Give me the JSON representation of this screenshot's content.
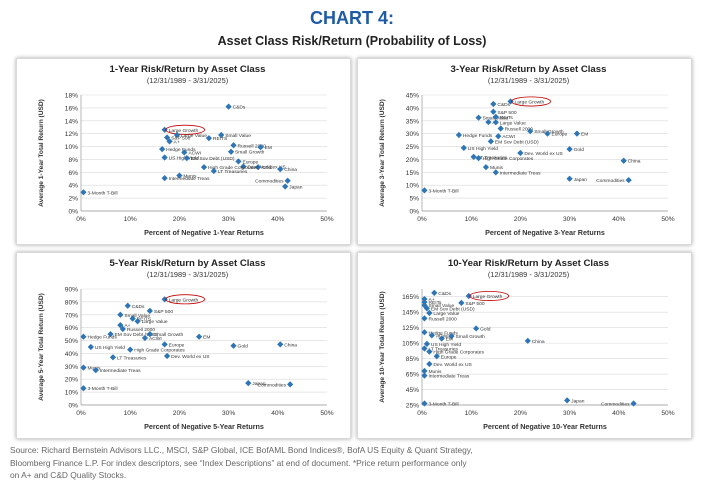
{
  "header": {
    "title": "CHART 4:",
    "subtitle": "Asset Class Risk/Return (Probability of Loss)"
  },
  "colors": {
    "title": "#1f5aa6",
    "marker": "#2e75b6",
    "highlight": "#c00000",
    "grid": "#d9d9d9"
  },
  "source_lines": [
    "Source: Richard Bernstein Advisors LLC., MSCI, S&P Global, ICE BofAML Bond Indices®, BofA US Equity & Quant Strategy,",
    "Bloomberg Finance L.P. For index descriptors, see “Index Descriptions” at end of document. *Price return performance only",
    "on A+ and C&D Quality Stocks."
  ],
  "chart_data": [
    {
      "type": "scatter",
      "title": "1-Year Risk/Return by Asset Class",
      "subtitle": "(12/31/1989 - 3/31/2025)",
      "xlabel": "Percent of Negative 1-Year Returns",
      "ylabel": "Average 1-Year Total Return (USD)",
      "xlim": [
        0,
        50
      ],
      "ylim": [
        0,
        18
      ],
      "xticks": [
        "0%",
        "10%",
        "20%",
        "30%",
        "40%",
        "50%"
      ],
      "xtick_values": [
        0,
        10,
        20,
        30,
        40,
        50
      ],
      "yticks": [
        "0%",
        "2%",
        "4%",
        "6%",
        "8%",
        "10%",
        "12%",
        "14%",
        "16%",
        "18%"
      ],
      "ytick_values": [
        0,
        2,
        4,
        6,
        8,
        10,
        12,
        14,
        16,
        18
      ],
      "highlight": "Large Growth",
      "points": [
        {
          "label": "C&Ds",
          "x": 30,
          "y": 16.2
        },
        {
          "label": "Large Growth",
          "x": 17,
          "y": 12.6
        },
        {
          "label": "Large Value",
          "x": 19.5,
          "y": 11.8
        },
        {
          "label": "Small Value",
          "x": 28.5,
          "y": 11.8
        },
        {
          "label": "S&P 500",
          "x": 17.5,
          "y": 11.4
        },
        {
          "label": "REITS",
          "x": 26,
          "y": 11.3
        },
        {
          "label": "A+",
          "x": 18,
          "y": 10.8
        },
        {
          "label": "Russell 2000",
          "x": 31,
          "y": 10.2
        },
        {
          "label": "EM",
          "x": 36.5,
          "y": 9.9
        },
        {
          "label": "Hedge Funds",
          "x": 16.5,
          "y": 9.6
        },
        {
          "label": "ACWI",
          "x": 21,
          "y": 9.1
        },
        {
          "label": "Small Growth",
          "x": 30.5,
          "y": 9.2
        },
        {
          "label": "US High Yield",
          "x": 17,
          "y": 8.3
        },
        {
          "label": "EM Sov Debt (USD)",
          "x": 21.5,
          "y": 8.2
        },
        {
          "label": "Europe",
          "x": 32,
          "y": 7.7
        },
        {
          "label": "Dev. World ex US",
          "x": 33,
          "y": 6.9
        },
        {
          "label": "Gold",
          "x": 36,
          "y": 6.8
        },
        {
          "label": "High Grade Corporates",
          "x": 25,
          "y": 6.8
        },
        {
          "label": "China",
          "x": 40.5,
          "y": 6.5
        },
        {
          "label": "LT Treasuries",
          "x": 27,
          "y": 6.2
        },
        {
          "label": "Munis",
          "x": 20,
          "y": 5.5
        },
        {
          "label": "Intermediate Treas",
          "x": 17,
          "y": 5.1
        },
        {
          "label": "Commodities",
          "x": 42,
          "y": 4.7
        },
        {
          "label": "Japan",
          "x": 41.5,
          "y": 3.8
        },
        {
          "label": "3-Month T-Bill",
          "x": 0.5,
          "y": 2.9
        }
      ]
    },
    {
      "type": "scatter",
      "title": "3-Year Risk/Return by Asset Class",
      "subtitle": "(12/31/1989 - 3/31/2025)",
      "xlabel": "Percent of Negative 3-Year Returns",
      "ylabel": "Average 3-Year Total Return (USD)",
      "xlim": [
        0,
        50
      ],
      "ylim": [
        0,
        45
      ],
      "xticks": [
        "0%",
        "10%",
        "20%",
        "30%",
        "40%",
        "50%"
      ],
      "xtick_values": [
        0,
        10,
        20,
        30,
        40,
        50
      ],
      "yticks": [
        "0%",
        "5%",
        "10%",
        "15%",
        "20%",
        "25%",
        "30%",
        "35%",
        "40%",
        "45%"
      ],
      "ytick_values": [
        0,
        5,
        10,
        15,
        20,
        25,
        30,
        35,
        40,
        45
      ],
      "highlight": "Large Growth",
      "points": [
        {
          "label": "C&Ds",
          "x": 14.5,
          "y": 41.5
        },
        {
          "label": "Large Growth",
          "x": 18,
          "y": 42.5
        },
        {
          "label": "S&P 500",
          "x": 14.5,
          "y": 38.5
        },
        {
          "label": "Small Value",
          "x": 11.5,
          "y": 36.2
        },
        {
          "label": "REITs",
          "x": 15,
          "y": 36.5
        },
        {
          "label": "A+",
          "x": 13.5,
          "y": 34.5
        },
        {
          "label": "Large Value",
          "x": 15,
          "y": 34.4
        },
        {
          "label": "Russell 2000",
          "x": 16,
          "y": 32
        },
        {
          "label": "Small Growth",
          "x": 22,
          "y": 31
        },
        {
          "label": "EM",
          "x": 31.5,
          "y": 30
        },
        {
          "label": "Europe",
          "x": 25.5,
          "y": 30
        },
        {
          "label": "Hedge Funds",
          "x": 7.5,
          "y": 29.5
        },
        {
          "label": "ACWI",
          "x": 15.5,
          "y": 29
        },
        {
          "label": "EM Sov Debt (USD)",
          "x": 14,
          "y": 27
        },
        {
          "label": "US High Yield",
          "x": 8.5,
          "y": 24.5
        },
        {
          "label": "Dev. World ex US",
          "x": 20,
          "y": 22.5
        },
        {
          "label": "Gold",
          "x": 30,
          "y": 24
        },
        {
          "label": "LT Treasuries",
          "x": 10.5,
          "y": 21
        },
        {
          "label": "High Grade Corporates",
          "x": 11.5,
          "y": 20.5
        },
        {
          "label": "China",
          "x": 41,
          "y": 19.5
        },
        {
          "label": "Munis",
          "x": 13,
          "y": 17
        },
        {
          "label": "Intermediate Treas",
          "x": 15,
          "y": 15
        },
        {
          "label": "Japan",
          "x": 30,
          "y": 12.5
        },
        {
          "label": "Commodities",
          "x": 42,
          "y": 12
        },
        {
          "label": "3-Month T-Bill",
          "x": 0.5,
          "y": 8
        }
      ]
    },
    {
      "type": "scatter",
      "title": "5-Year Risk/Return by Asset Class",
      "subtitle": "(12/31/1989 - 3/31/2025)",
      "xlabel": "Percent of Negative 5-Year Returns",
      "ylabel": "Average 5-Year Total Return (USD)",
      "xlim": [
        0,
        50
      ],
      "ylim": [
        0,
        90
      ],
      "xticks": [
        "0%",
        "10%",
        "20%",
        "30%",
        "40%",
        "50%"
      ],
      "xtick_values": [
        0,
        10,
        20,
        30,
        40,
        50
      ],
      "yticks": [
        "0%",
        "10%",
        "20%",
        "30%",
        "40%",
        "50%",
        "60%",
        "70%",
        "80%",
        "90%"
      ],
      "ytick_values": [
        0,
        10,
        20,
        30,
        40,
        50,
        60,
        70,
        80,
        90
      ],
      "highlight": "Large Growth",
      "points": [
        {
          "label": "C&Ds",
          "x": 9.5,
          "y": 77
        },
        {
          "label": "Large Growth",
          "x": 17,
          "y": 82
        },
        {
          "label": "S&P 500",
          "x": 14,
          "y": 73
        },
        {
          "label": "Small Value",
          "x": 8,
          "y": 70
        },
        {
          "label": "REITS",
          "x": 10.5,
          "y": 67
        },
        {
          "label": "Large Value",
          "x": 11.5,
          "y": 65
        },
        {
          "label": "A+",
          "x": 8,
          "y": 62
        },
        {
          "label": "Russell 2000",
          "x": 8.5,
          "y": 59
        },
        {
          "label": "EM Sov Debt (USD)",
          "x": 6,
          "y": 55
        },
        {
          "label": "Small Growth",
          "x": 14,
          "y": 55
        },
        {
          "label": "Hedge Funds",
          "x": 0.5,
          "y": 53
        },
        {
          "label": "ACWI",
          "x": 13,
          "y": 52
        },
        {
          "label": "EM",
          "x": 24,
          "y": 53
        },
        {
          "label": "Europe",
          "x": 17,
          "y": 47
        },
        {
          "label": "US High Yield",
          "x": 2,
          "y": 45
        },
        {
          "label": "High Grade Corporates",
          "x": 10,
          "y": 43
        },
        {
          "label": "Gold",
          "x": 31,
          "y": 46
        },
        {
          "label": "China",
          "x": 40.5,
          "y": 47
        },
        {
          "label": "Dev. World ex US",
          "x": 17.5,
          "y": 38
        },
        {
          "label": "LT Treasuries",
          "x": 6.5,
          "y": 37
        },
        {
          "label": "Munis",
          "x": 0.5,
          "y": 29
        },
        {
          "label": "Intermediate Treas",
          "x": 3,
          "y": 27
        },
        {
          "label": "Japan",
          "x": 34,
          "y": 17
        },
        {
          "label": "Commodities",
          "x": 42.5,
          "y": 16
        },
        {
          "label": "3-Month T-Bill",
          "x": 0.5,
          "y": 13
        }
      ]
    },
    {
      "type": "scatter",
      "title": "10-Year Risk/Return by Asset Class",
      "subtitle": "(12/31/1989 - 3/31/2025)",
      "xlabel": "Percent of Negative 10-Year Returns",
      "ylabel": "Average 10-Year Total Return (USD)",
      "xlim": [
        0,
        50
      ],
      "ylim": [
        25,
        175
      ],
      "xticks": [
        "0%",
        "10%",
        "20%",
        "30%",
        "40%",
        "50%"
      ],
      "xtick_values": [
        0,
        10,
        20,
        30,
        40,
        50
      ],
      "yticks": [
        "25%",
        "45%",
        "65%",
        "85%",
        "105%",
        "125%",
        "145%",
        "165%"
      ],
      "ytick_values": [
        25,
        45,
        65,
        85,
        105,
        125,
        145,
        165
      ],
      "highlight": "Large Growth",
      "points": [
        {
          "label": "C&Ds",
          "x": 2.5,
          "y": 170
        },
        {
          "label": "Large Growth",
          "x": 9.5,
          "y": 166
        },
        {
          "label": "S&P 500",
          "x": 8,
          "y": 157
        },
        {
          "label": "A+",
          "x": 0.5,
          "y": 162
        },
        {
          "label": "REITs",
          "x": 0.5,
          "y": 158
        },
        {
          "label": "Small Value",
          "x": 0.5,
          "y": 154
        },
        {
          "label": "EM Sov Debt (USD)",
          "x": 1,
          "y": 150
        },
        {
          "label": "Large Value",
          "x": 1.5,
          "y": 144
        },
        {
          "label": "Russell 2000",
          "x": 0.5,
          "y": 137
        },
        {
          "label": "Gold",
          "x": 11,
          "y": 124
        },
        {
          "label": "Hedge Funds",
          "x": 0.5,
          "y": 119
        },
        {
          "label": "ACWI",
          "x": 2,
          "y": 115
        },
        {
          "label": "Small Growth",
          "x": 6,
          "y": 114
        },
        {
          "label": "EM",
          "x": 4,
          "y": 111
        },
        {
          "label": "China",
          "x": 21.5,
          "y": 108
        },
        {
          "label": "US High Yield",
          "x": 1,
          "y": 104
        },
        {
          "label": "LT Treasuries",
          "x": 0.5,
          "y": 98
        },
        {
          "label": "High Grade Corporates",
          "x": 1.5,
          "y": 94
        },
        {
          "label": "Europe",
          "x": 3,
          "y": 88
        },
        {
          "label": "Dev. World ex US",
          "x": 1.5,
          "y": 78
        },
        {
          "label": "Munis",
          "x": 0.5,
          "y": 69
        },
        {
          "label": "Intermediate Treas",
          "x": 0.5,
          "y": 63
        },
        {
          "label": "3-Month T-Bill",
          "x": 0.5,
          "y": 27
        },
        {
          "label": "Japan",
          "x": 29.5,
          "y": 31
        },
        {
          "label": "Commodities",
          "x": 43,
          "y": 27
        }
      ]
    }
  ]
}
